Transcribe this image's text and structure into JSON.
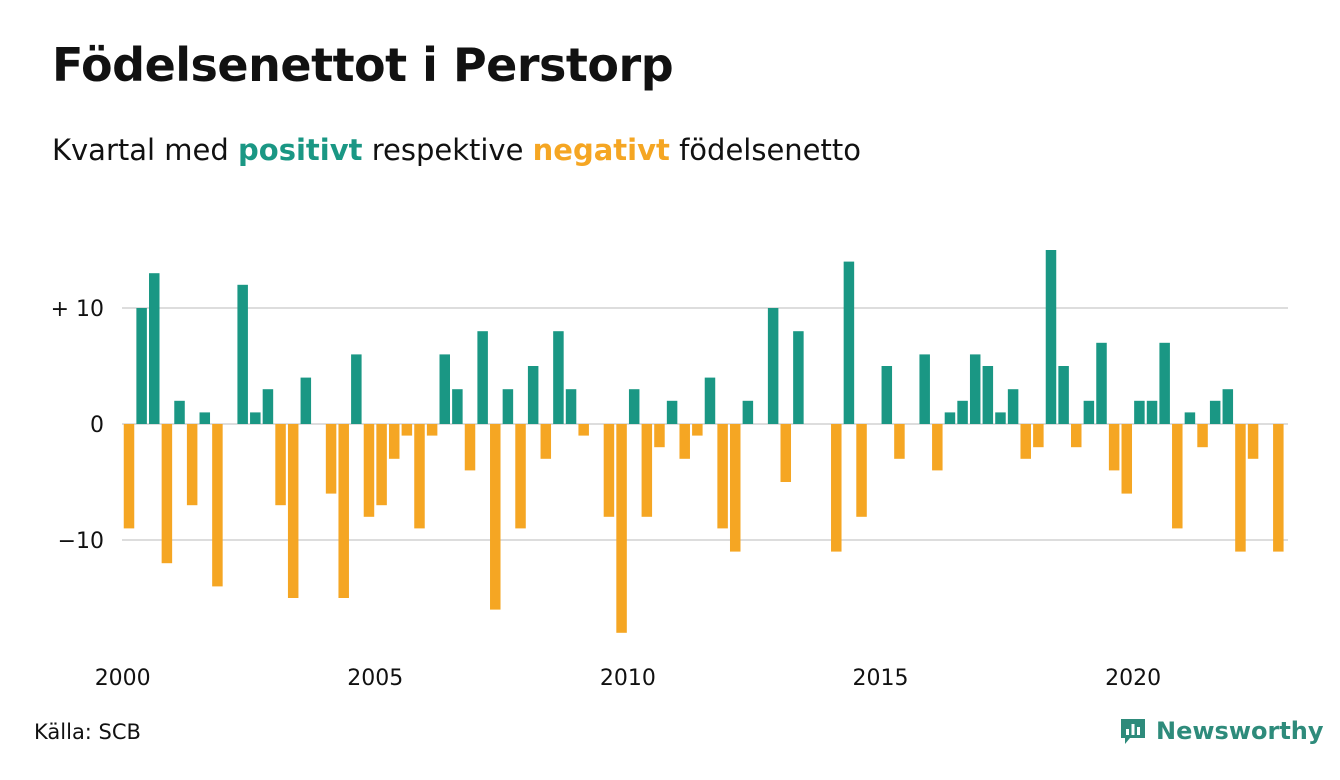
{
  "header": {
    "title": "Födelsenettot i Perstorp",
    "subtitle_prefix": "Kvartal med",
    "subtitle_positive": "positivt",
    "subtitle_middle": "respektive",
    "subtitle_negative": "negativt",
    "subtitle_suffix": "födelsenetto"
  },
  "footer": {
    "source": "Källa: SCB",
    "brand": "Newsworthy",
    "brand_icon": "chart-bubble-icon"
  },
  "colors": {
    "positive": "#1a9784",
    "negative": "#f5a623",
    "grid": "#dddddd",
    "brand": "#2e8b7b"
  },
  "chart_data": {
    "type": "bar",
    "x_start": "2000 Q1",
    "x_step": "quarter",
    "x_ticks": [
      "2000",
      "2005",
      "2010",
      "2015",
      "2020"
    ],
    "y_ticks": [
      {
        "value": 10,
        "label": "+ 10"
      },
      {
        "value": 0,
        "label": "0"
      },
      {
        "value": -10,
        "label": "−10"
      }
    ],
    "ylim": [
      -18,
      15
    ],
    "grid": true,
    "values": [
      -9,
      10,
      13,
      -12,
      2,
      -7,
      1,
      -14,
      0,
      12,
      1,
      3,
      -7,
      -15,
      4,
      0,
      -6,
      -15,
      6,
      -8,
      -7,
      -3,
      -1,
      -9,
      -1,
      6,
      3,
      -4,
      8,
      -16,
      3,
      -9,
      5,
      -3,
      8,
      3,
      -1,
      0,
      -8,
      -18,
      3,
      -8,
      -2,
      2,
      -3,
      -1,
      4,
      -9,
      -11,
      2,
      0,
      10,
      -5,
      8,
      0,
      0,
      -11,
      14,
      -8,
      0,
      5,
      -3,
      0,
      6,
      -4,
      1,
      2,
      6,
      5,
      1,
      3,
      -3,
      -2,
      15,
      5,
      -2,
      2,
      7,
      -4,
      -6,
      2,
      2,
      7,
      -9,
      1,
      -2,
      2,
      3,
      -11,
      -3,
      0,
      -11
    ]
  }
}
